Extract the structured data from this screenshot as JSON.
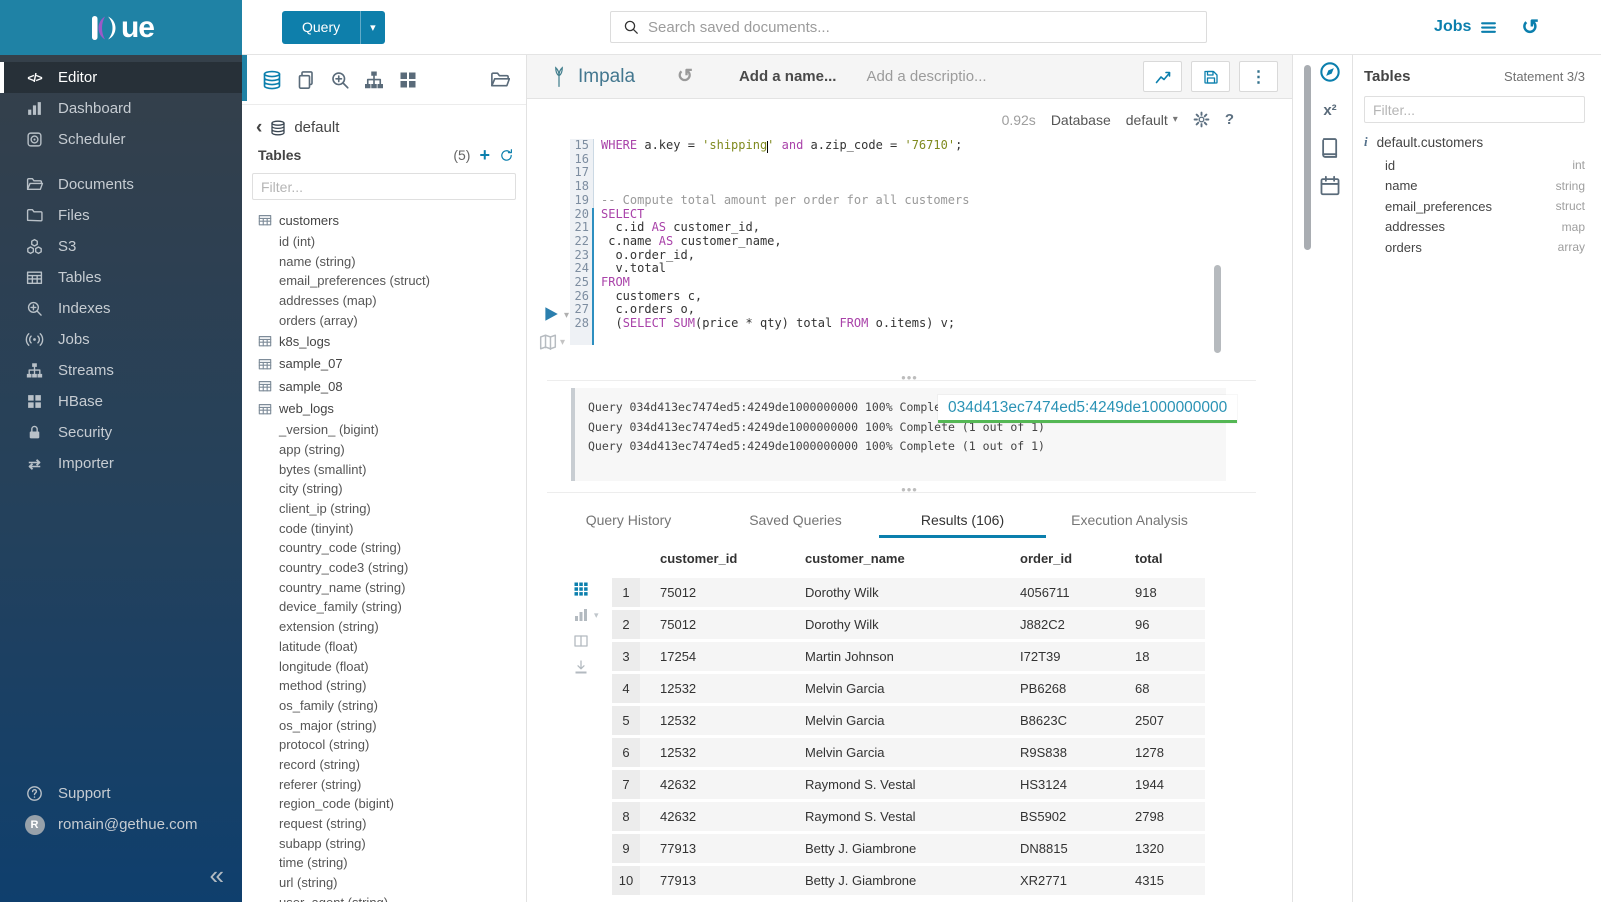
{
  "topbar": {
    "logo_text": "ue",
    "query_button_label": "Query",
    "search_placeholder": "Search saved documents...",
    "jobs_label": "Jobs"
  },
  "left_nav": {
    "items": [
      {
        "label": "Editor",
        "icon": "code",
        "active": true
      },
      {
        "label": "Dashboard",
        "icon": "chart-bars"
      },
      {
        "label": "Scheduler",
        "icon": "scheduler"
      },
      {
        "gap": true
      },
      {
        "label": "Documents",
        "icon": "folder-open"
      },
      {
        "label": "Files",
        "icon": "folder"
      },
      {
        "label": "S3",
        "icon": "cubes"
      },
      {
        "label": "Tables",
        "icon": "table"
      },
      {
        "label": "Indexes",
        "icon": "magnifier-plus"
      },
      {
        "label": "Jobs",
        "icon": "broadcast"
      },
      {
        "label": "Streams",
        "icon": "sitemap"
      },
      {
        "label": "HBase",
        "icon": "grid4"
      },
      {
        "label": "Security",
        "icon": "lock"
      },
      {
        "label": "Importer",
        "icon": "swap"
      }
    ],
    "support_label": "Support",
    "user_email": "romain@gethue.com",
    "user_initial": "R",
    "collapse_glyph": "«"
  },
  "panel2": {
    "toolbar_icons": [
      {
        "name": "database",
        "active": true
      },
      {
        "name": "copy"
      },
      {
        "name": "magnifier-plus"
      },
      {
        "name": "sitemap"
      },
      {
        "name": "grid4"
      }
    ],
    "folder_icon": "folder-open",
    "breadcrumb_back": "‹",
    "breadcrumb_db": "default",
    "tables_label": "Tables",
    "tables_count": "(5)",
    "filter_placeholder": "Filter...",
    "tree": [
      {
        "kind": "table",
        "label": "customers"
      },
      {
        "kind": "column",
        "label": "id (int)"
      },
      {
        "kind": "column",
        "label": "name (string)"
      },
      {
        "kind": "column",
        "label": "email_preferences (struct)"
      },
      {
        "kind": "column",
        "label": "addresses (map)"
      },
      {
        "kind": "column",
        "label": "orders (array)"
      },
      {
        "kind": "table",
        "label": "k8s_logs"
      },
      {
        "kind": "table",
        "label": "sample_07"
      },
      {
        "kind": "table",
        "label": "sample_08"
      },
      {
        "kind": "table",
        "label": "web_logs"
      },
      {
        "kind": "column",
        "label": "_version_ (bigint)"
      },
      {
        "kind": "column",
        "label": "app (string)"
      },
      {
        "kind": "column",
        "label": "bytes (smallint)"
      },
      {
        "kind": "column",
        "label": "city (string)"
      },
      {
        "kind": "column",
        "label": "client_ip (string)"
      },
      {
        "kind": "column",
        "label": "code (tinyint)"
      },
      {
        "kind": "column",
        "label": "country_code (string)"
      },
      {
        "kind": "column",
        "label": "country_code3 (string)"
      },
      {
        "kind": "column",
        "label": "country_name (string)"
      },
      {
        "kind": "column",
        "label": "device_family (string)"
      },
      {
        "kind": "column",
        "label": "extension (string)"
      },
      {
        "kind": "column",
        "label": "latitude (float)"
      },
      {
        "kind": "column",
        "label": "longitude (float)"
      },
      {
        "kind": "column",
        "label": "method (string)"
      },
      {
        "kind": "column",
        "label": "os_family (string)"
      },
      {
        "kind": "column",
        "label": "os_major (string)"
      },
      {
        "kind": "column",
        "label": "protocol (string)"
      },
      {
        "kind": "column",
        "label": "record (string)"
      },
      {
        "kind": "column",
        "label": "referer (string)"
      },
      {
        "kind": "column",
        "label": "region_code (bigint)"
      },
      {
        "kind": "column",
        "label": "request (string)"
      },
      {
        "kind": "column",
        "label": "subapp (string)"
      },
      {
        "kind": "column",
        "label": "time (string)"
      },
      {
        "kind": "column",
        "label": "url (string)"
      },
      {
        "kind": "column",
        "label": "user_agent (string)"
      }
    ]
  },
  "editor": {
    "engine": "Impala",
    "name_placeholder": "Add a name...",
    "desc_placeholder": "Add a descriptio...",
    "exec_time": "0.92s",
    "database_label": "Database",
    "database_value": "default",
    "help_glyph": "?",
    "code_lines": [
      {
        "n": "15",
        "seg": [
          [
            "kw",
            "WHERE"
          ],
          [
            "pln",
            " a.key = "
          ],
          [
            "str",
            "'shipping'"
          ],
          [
            "pln",
            " "
          ],
          [
            "kw",
            "and"
          ],
          [
            "pln",
            " a.zip_code = "
          ],
          [
            "str",
            "'76710'"
          ],
          [
            "pln",
            ";"
          ]
        ]
      },
      {
        "n": "16",
        "seg": []
      },
      {
        "n": "17",
        "seg": []
      },
      {
        "n": "18",
        "seg": []
      },
      {
        "n": "19",
        "seg": [
          [
            "com",
            "-- Compute total amount per order for all customers"
          ]
        ]
      },
      {
        "n": "20",
        "act": true,
        "seg": [
          [
            "kw",
            "SELECT"
          ]
        ]
      },
      {
        "n": "21",
        "act": true,
        "seg": [
          [
            "pln",
            "  c.id "
          ],
          [
            "kw",
            "AS"
          ],
          [
            "pln",
            " customer_id,"
          ]
        ]
      },
      {
        "n": "22",
        "act": true,
        "seg": [
          [
            "pln",
            " c.name "
          ],
          [
            "kw",
            "AS"
          ],
          [
            "pln",
            " customer_name,"
          ]
        ]
      },
      {
        "n": "23",
        "act": true,
        "seg": [
          [
            "pln",
            "  o.order_id,"
          ]
        ]
      },
      {
        "n": "24",
        "act": true,
        "seg": [
          [
            "pln",
            "  v.total"
          ]
        ]
      },
      {
        "n": "25",
        "act": true,
        "seg": [
          [
            "kw",
            "FROM"
          ]
        ]
      },
      {
        "n": "26",
        "act": true,
        "seg": [
          [
            "pln",
            "  customers c,"
          ]
        ]
      },
      {
        "n": "27",
        "act": true,
        "seg": [
          [
            "pln",
            "  c.orders o,"
          ]
        ]
      },
      {
        "n": "28",
        "act": true,
        "seg": [
          [
            "pln",
            "  ("
          ],
          [
            "kw",
            "SELECT"
          ],
          [
            "pln",
            " "
          ],
          [
            "kw",
            "SUM"
          ],
          [
            "pln",
            "(price * qty) total "
          ],
          [
            "kw",
            "FROM"
          ],
          [
            "pln",
            " o.items) v;"
          ]
        ]
      },
      {
        "n": "",
        "act": true,
        "seg": []
      }
    ]
  },
  "log": {
    "lines": [
      "Query 034d413ec7474ed5:4249de1000000000 100% Complete (1 out of 1)",
      "Query 034d413ec7474ed5:4249de1000000000 100% Complete (1 out of 1)",
      "Query 034d413ec7474ed5:4249de1000000000 100% Complete (1 out of 1)"
    ],
    "popover_text": "034d413ec7474ed5:4249de1000000000"
  },
  "tabs": [
    {
      "label": "Query History"
    },
    {
      "label": "Saved Queries"
    },
    {
      "label": "Results (106)",
      "active": true
    },
    {
      "label": "Execution Analysis"
    }
  ],
  "results": {
    "side_icons": [
      {
        "name": "grid9",
        "active": true
      },
      {
        "name": "chart-bars",
        "caret": true
      },
      {
        "name": "columns"
      },
      {
        "name": "download"
      }
    ],
    "columns": [
      "customer_id",
      "customer_name",
      "order_id",
      "total"
    ],
    "rows": [
      [
        "1",
        "75012",
        "Dorothy Wilk",
        "4056711",
        "918"
      ],
      [
        "2",
        "75012",
        "Dorothy Wilk",
        "J882C2",
        "96"
      ],
      [
        "3",
        "17254",
        "Martin Johnson",
        "I72T39",
        "18"
      ],
      [
        "4",
        "12532",
        "Melvin Garcia",
        "PB6268",
        "68"
      ],
      [
        "5",
        "12532",
        "Melvin Garcia",
        "B8623C",
        "2507"
      ],
      [
        "6",
        "12532",
        "Melvin Garcia",
        "R9S838",
        "1278"
      ],
      [
        "7",
        "42632",
        "Raymond S. Vestal",
        "HS3124",
        "1944"
      ],
      [
        "8",
        "42632",
        "Raymond S. Vestal",
        "BS5902",
        "2798"
      ],
      [
        "9",
        "77913",
        "Betty J. Giambrone",
        "DN8815",
        "1320"
      ],
      [
        "10",
        "77913",
        "Betty J. Giambrone",
        "XR2771",
        "4315"
      ]
    ]
  },
  "assist": {
    "icons": [
      {
        "name": "compass",
        "active": true
      },
      {
        "name": "x2"
      },
      {
        "name": "book"
      },
      {
        "name": "calendar"
      }
    ]
  },
  "right_panel": {
    "title": "Tables",
    "statement": "Statement 3/3",
    "filter_placeholder": "Filter...",
    "table_name": "default.customers",
    "info_glyph": "i",
    "columns": [
      {
        "name": "id",
        "type": "int"
      },
      {
        "name": "name",
        "type": "string"
      },
      {
        "name": "email_preferences",
        "type": "struct"
      },
      {
        "name": "addresses",
        "type": "map"
      },
      {
        "name": "orders",
        "type": "array"
      }
    ]
  },
  "colors": {
    "banner": "#1f82a5",
    "accent": "#0b7fad",
    "tab_underline": "#0b7fad",
    "popover_underline": "#54b754",
    "keyword": "#a942a9",
    "string": "#7f8a1e",
    "comment": "#999999"
  }
}
